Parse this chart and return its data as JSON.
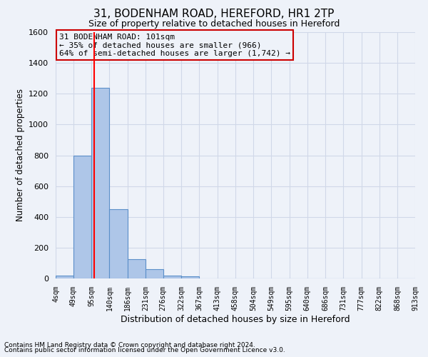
{
  "title1": "31, BODENHAM ROAD, HEREFORD, HR1 2TP",
  "title2": "Size of property relative to detached houses in Hereford",
  "xlabel": "Distribution of detached houses by size in Hereford",
  "ylabel": "Number of detached properties",
  "footer1": "Contains HM Land Registry data © Crown copyright and database right 2024.",
  "footer2": "Contains public sector information licensed under the Open Government Licence v3.0.",
  "annotation_line1": "31 BODENHAM ROAD: 101sqm",
  "annotation_line2": "← 35% of detached houses are smaller (966)",
  "annotation_line3": "64% of semi-detached houses are larger (1,742) →",
  "bar_edges": [
    4,
    49,
    95,
    140,
    186,
    231,
    276,
    322,
    367,
    413,
    458,
    504,
    549,
    595,
    640,
    686,
    731,
    777,
    822,
    868,
    913
  ],
  "bar_heights": [
    20,
    800,
    1240,
    450,
    125,
    60,
    20,
    12,
    0,
    0,
    0,
    0,
    0,
    0,
    0,
    0,
    0,
    0,
    0,
    0
  ],
  "bar_color": "#aec6e8",
  "bar_edge_color": "#5b8fc9",
  "red_line_x": 101,
  "ylim": [
    0,
    1600
  ],
  "yticks": [
    0,
    200,
    400,
    600,
    800,
    1000,
    1200,
    1400,
    1600
  ],
  "grid_color": "#d0d8e8",
  "annotation_box_color": "#cc0000",
  "background_color": "#eef2f9",
  "bin_labels": [
    "4sqm",
    "49sqm",
    "95sqm",
    "140sqm",
    "186sqm",
    "231sqm",
    "276sqm",
    "322sqm",
    "367sqm",
    "413sqm",
    "458sqm",
    "504sqm",
    "549sqm",
    "595sqm",
    "640sqm",
    "686sqm",
    "731sqm",
    "777sqm",
    "822sqm",
    "868sqm",
    "913sqm"
  ]
}
